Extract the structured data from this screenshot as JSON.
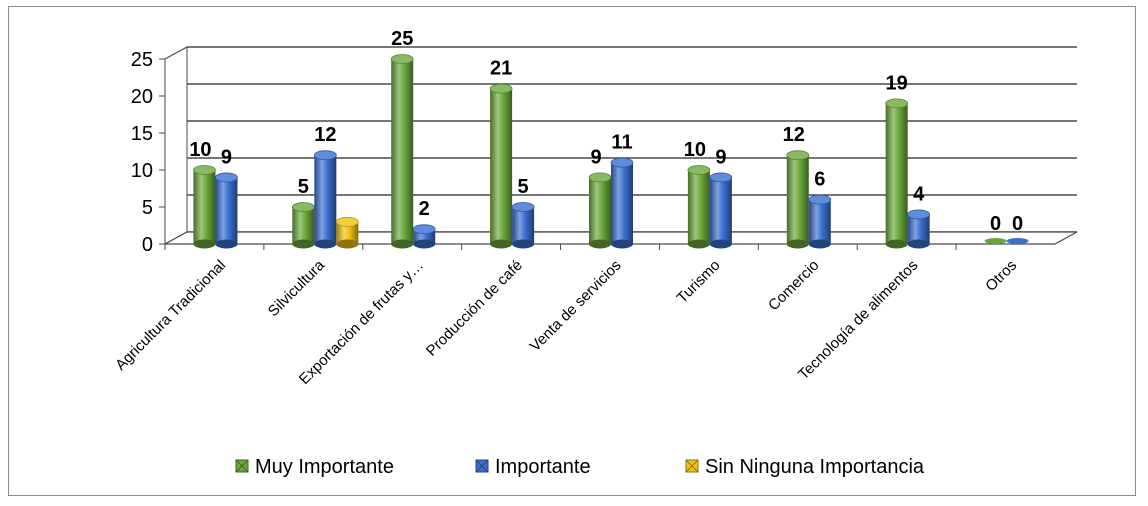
{
  "chart_data": {
    "type": "bar",
    "title": "",
    "xlabel": "",
    "ylabel": "",
    "ylim": [
      0,
      25
    ],
    "yticks": [
      0,
      5,
      10,
      15,
      20,
      25
    ],
    "grid": true,
    "legend_position": "bottom",
    "categories": [
      "Agricultura Tradicional",
      "Silvicultura",
      "Exportación de frutas y…",
      "Producción de café",
      "Venta de servicios",
      "Turismo",
      "Comercio",
      "Tecnología de alimentos",
      "Otros"
    ],
    "series": [
      {
        "name": "Muy Importante",
        "color": "#6aa83c",
        "values": [
          10,
          5,
          25,
          21,
          9,
          10,
          12,
          19,
          0
        ]
      },
      {
        "name": "Importante",
        "color": "#3a6fd0",
        "values": [
          9,
          12,
          2,
          5,
          11,
          9,
          6,
          4,
          0
        ]
      },
      {
        "name": "Sin Ninguna Importancia",
        "color": "#f2c010",
        "values": [
          null,
          3,
          null,
          null,
          null,
          null,
          null,
          null,
          null
        ]
      }
    ],
    "data_labels": [
      [
        "10",
        "5",
        "25",
        "21",
        "9",
        "10",
        "12",
        "19",
        "0"
      ],
      [
        "9",
        "12",
        "2",
        "5",
        "11",
        "9",
        "6",
        "4",
        "0"
      ],
      [
        "",
        "",
        "",
        "",
        "",
        "",
        "",
        "",
        ""
      ]
    ]
  }
}
